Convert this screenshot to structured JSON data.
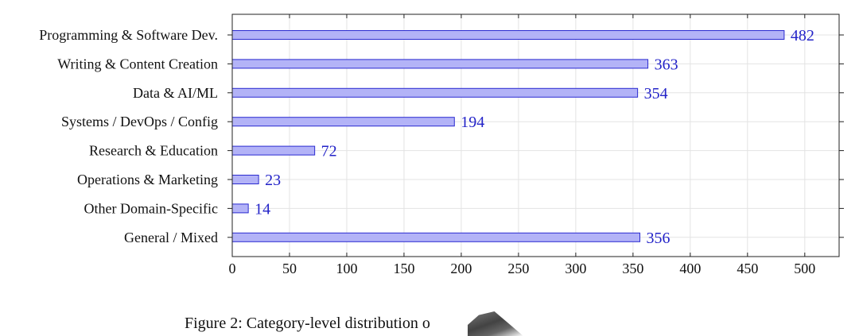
{
  "chart_data": {
    "type": "bar",
    "orientation": "horizontal",
    "categories": [
      "Programming & Software Dev.",
      "Writing & Content Creation",
      "Data & AI/ML",
      "Systems / DevOps / Config",
      "Research & Education",
      "Operations & Marketing",
      "Other Domain-Specific",
      "General / Mixed"
    ],
    "values": [
      482,
      363,
      354,
      194,
      72,
      23,
      14,
      356
    ],
    "xlim": [
      0,
      530
    ],
    "xticks": [
      0,
      50,
      100,
      150,
      200,
      250,
      300,
      350,
      400,
      450,
      500
    ],
    "grid": true,
    "data_labels": true,
    "title": "",
    "xlabel": "",
    "ylabel": ""
  },
  "colors": {
    "bar_fill": "#b3b3f7",
    "bar_stroke": "#2a2ad0",
    "value_text": "#2323c8",
    "grid": "#e3e3e3",
    "axis": "#222222"
  },
  "caption": {
    "text": "Figure 2: Category-level distribution o"
  }
}
